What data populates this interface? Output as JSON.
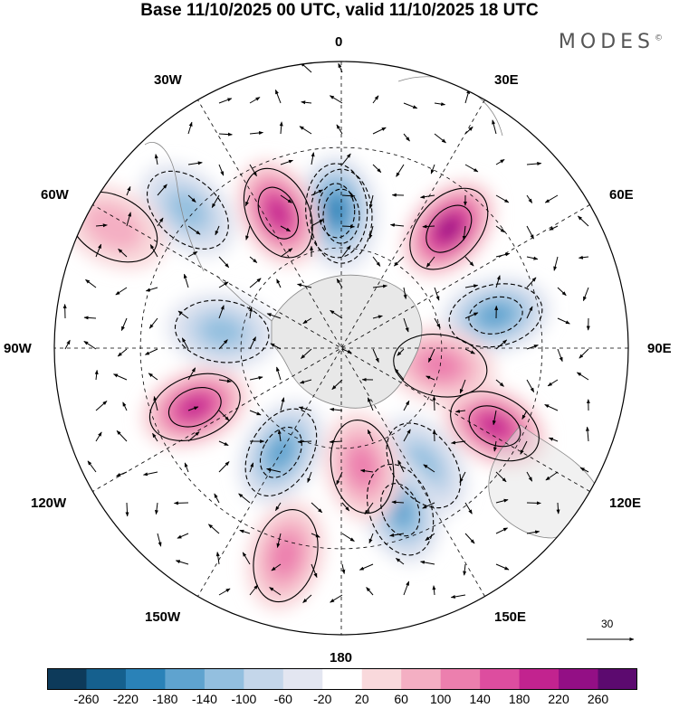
{
  "title": "Base 11/10/2025 00 UTC, valid 11/10/2025 18 UTC",
  "brand": "MODES",
  "brand_mark": "©",
  "longitude_labels": {
    "top": "0",
    "top_left": "30W",
    "top_right": "30E",
    "upper_left": "60W",
    "upper_right": "60E",
    "left": "90W",
    "right": "90E",
    "lower_left": "120W",
    "lower_right": "120E",
    "bottom_left": "150W",
    "bottom_right": "150E",
    "bottom": "180"
  },
  "reference_vector": {
    "value": "30"
  },
  "colorbar": {
    "ticks": [
      "-260",
      "-220",
      "-180",
      "-140",
      "-100",
      "-60",
      "-20",
      "20",
      "60",
      "100",
      "140",
      "180",
      "220",
      "260"
    ],
    "colors": [
      "#0d3a5a",
      "#15608e",
      "#2a82b8",
      "#5fa3cf",
      "#93bfdf",
      "#c4d6ea",
      "#e3e6f1",
      "#ffffff",
      "#f9d9dc",
      "#f4afc3",
      "#ec7fae",
      "#dd4d9f",
      "#c2238f",
      "#930f85",
      "#5c0a6f"
    ]
  },
  "map_features": {
    "anomalies": [
      {
        "kind": "neg",
        "level": 5,
        "lon": 0,
        "colat": 0.46
      },
      {
        "kind": "neg",
        "level": 4,
        "lon": -2,
        "colat": 0.48
      },
      {
        "kind": "pos",
        "level": 5,
        "lon": 42,
        "colat": 0.56
      },
      {
        "kind": "pos",
        "level": 4,
        "lon": -25,
        "colat": 0.52
      },
      {
        "kind": "neg",
        "level": 3,
        "lon": 78,
        "colat": 0.55
      },
      {
        "kind": "pos",
        "level": 4,
        "lon": 117,
        "colat": 0.6
      },
      {
        "kind": "pos",
        "level": 2,
        "lon": 100,
        "colat": 0.35
      },
      {
        "kind": "neg",
        "level": 2,
        "lon": 145,
        "colat": 0.5
      },
      {
        "kind": "neg",
        "level": 3,
        "lon": 160,
        "colat": 0.6
      },
      {
        "kind": "pos",
        "level": 2,
        "lon": 170,
        "colat": 0.42
      },
      {
        "kind": "neg",
        "level": 3,
        "lon": -150,
        "colat": 0.42
      },
      {
        "kind": "pos",
        "level": 2,
        "lon": -165,
        "colat": 0.75
      },
      {
        "kind": "pos",
        "level": 4,
        "lon": -112,
        "colat": 0.55
      },
      {
        "kind": "neg",
        "level": 2,
        "lon": -82,
        "colat": 0.42
      },
      {
        "kind": "neg",
        "level": 2,
        "lon": -48,
        "colat": 0.72
      },
      {
        "kind": "pos",
        "level": 1,
        "lon": -62,
        "colat": 0.9
      }
    ]
  }
}
